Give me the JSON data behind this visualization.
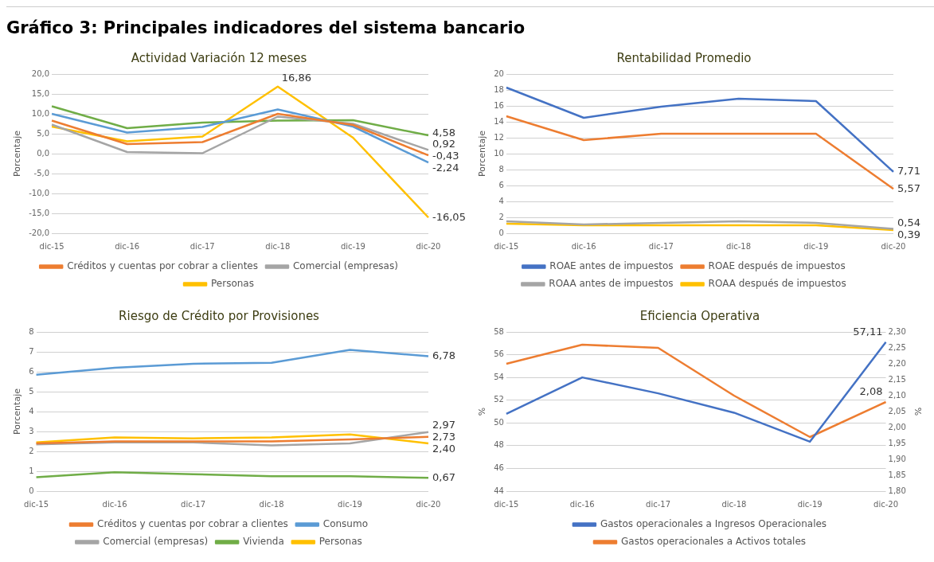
{
  "chart_data": [
    {
      "type": "line",
      "title": "Actividad Variación 12 meses",
      "ylabel": "Porcentaje",
      "annotations": [
        "Gráfico 3: Principales indicadores del sistema bancario"
      ],
      "categories": [
        "dic-15",
        "dic-16",
        "dic-17",
        "dic-18",
        "dic-19",
        "dic-20"
      ],
      "ylim": [
        -20,
        20
      ],
      "yticks": [
        {
          "value": -20,
          "label": "-20,0"
        },
        {
          "value": -15,
          "label": "-15,0"
        },
        {
          "value": -10,
          "label": "-10,0"
        },
        {
          "value": -5,
          "label": "-5,0"
        },
        {
          "value": 0,
          "label": "0,0"
        },
        {
          "value": 5,
          "label": "5,0"
        },
        {
          "value": 10,
          "label": "10,0"
        },
        {
          "value": 15,
          "label": "15,0"
        },
        {
          "value": 20,
          "label": "20,0"
        }
      ],
      "grid": "y",
      "legend": "bottom",
      "marker": "none",
      "line_style": "solid",
      "series": [
        {
          "name": "Créditos y cuentas por cobrar a clientes",
          "color": "#ed7d31",
          "values": [
            8.3,
            2.4,
            2.9,
            10.0,
            7.2,
            -0.43
          ],
          "value_labels": [
            null,
            null,
            null,
            null,
            null,
            "-0,43"
          ]
        },
        {
          "name": "Comercial (empresas)",
          "color": "#a5a5a5",
          "values": [
            7.3,
            0.4,
            0.1,
            9.3,
            7.5,
            0.92
          ],
          "value_labels": [
            null,
            null,
            null,
            null,
            null,
            "0,92"
          ]
        },
        {
          "color": "#5b9bd5",
          "values": [
            10.0,
            5.3,
            6.7,
            11.1,
            6.8,
            -2.24
          ],
          "value_labels": [
            null,
            null,
            null,
            null,
            null,
            "-2,24"
          ]
        },
        {
          "color": "#70ad47",
          "values": [
            11.9,
            6.4,
            7.8,
            8.3,
            8.4,
            4.58
          ],
          "value_labels": [
            null,
            null,
            null,
            null,
            null,
            "4,58"
          ]
        },
        {
          "name": "Personas",
          "color": "#ffc000",
          "values": [
            6.8,
            3.1,
            4.3,
            16.86,
            4.0,
            -16.05
          ],
          "value_labels": [
            null,
            null,
            null,
            "16,86",
            null,
            "-16,05"
          ]
        }
      ]
    },
    {
      "type": "line",
      "title": "Rentabilidad Promedio",
      "ylabel": "Porcentaje",
      "categories": [
        "dic-15",
        "dic-16",
        "dic-17",
        "dic-18",
        "dic-19",
        "dic-20"
      ],
      "ylim": [
        0,
        20
      ],
      "yticks": [
        0,
        2,
        4,
        6,
        8,
        10,
        12,
        14,
        16,
        18,
        20
      ],
      "grid": "y",
      "legend": "bottom",
      "marker": "none",
      "line_style": "solid",
      "series": [
        {
          "name": "ROAE antes de impuestos",
          "color": "#4472c4",
          "values": [
            18.3,
            14.5,
            15.9,
            16.9,
            16.6,
            7.71
          ],
          "value_labels": [
            null,
            null,
            null,
            null,
            null,
            "7,71"
          ]
        },
        {
          "name": "ROAE después de impuestos",
          "color": "#ed7d31",
          "values": [
            14.7,
            11.7,
            12.5,
            12.5,
            12.5,
            5.57
          ],
          "value_labels": [
            null,
            null,
            null,
            null,
            null,
            "5,57"
          ]
        },
        {
          "name": "ROAA antes de impuestos",
          "color": "#a5a5a5",
          "values": [
            1.5,
            1.1,
            1.3,
            1.5,
            1.3,
            0.54
          ],
          "value_labels": [
            null,
            null,
            null,
            null,
            null,
            "0,54"
          ]
        },
        {
          "name": "ROAA después de impuestos",
          "color": "#ffc000",
          "values": [
            1.2,
            1.0,
            1.0,
            1.0,
            1.0,
            0.39
          ],
          "value_labels": [
            null,
            null,
            null,
            null,
            null,
            "0,39"
          ]
        }
      ]
    },
    {
      "type": "line",
      "title": "Riesgo de Crédito por Provisiones",
      "ylabel": "Porcentaje",
      "categories": [
        "dic-15",
        "dic-16",
        "dic-17",
        "dic-18",
        "dic-19",
        "dic-20"
      ],
      "ylim": [
        0,
        8
      ],
      "yticks": [
        0,
        1,
        2,
        3,
        4,
        5,
        6,
        7,
        8
      ],
      "grid": "y",
      "legend": "bottom",
      "marker": "none",
      "line_style": "solid",
      "series": [
        {
          "name": "Créditos y cuentas por cobrar a clientes",
          "color": "#ed7d31",
          "values": [
            2.4,
            2.5,
            2.5,
            2.5,
            2.6,
            2.73
          ],
          "value_labels": [
            null,
            null,
            null,
            null,
            null,
            "2,73"
          ]
        },
        {
          "name": "Consumo",
          "color": "#5b9bd5",
          "values": [
            5.85,
            6.2,
            6.4,
            6.45,
            7.1,
            6.78
          ],
          "value_labels": [
            null,
            null,
            null,
            null,
            null,
            "6,78"
          ]
        },
        {
          "name": "Comercial (empresas)",
          "color": "#a5a5a5",
          "values": [
            2.35,
            2.45,
            2.45,
            2.3,
            2.4,
            2.97
          ],
          "value_labels": [
            null,
            null,
            null,
            null,
            null,
            "2,97"
          ]
        },
        {
          "name": "Vivienda",
          "color": "#70ad47",
          "values": [
            0.7,
            0.95,
            0.85,
            0.75,
            0.75,
            0.67
          ],
          "value_labels": [
            null,
            null,
            null,
            null,
            null,
            "0,67"
          ]
        },
        {
          "name": "Personas",
          "color": "#ffc000",
          "values": [
            2.45,
            2.7,
            2.65,
            2.7,
            2.85,
            2.4
          ],
          "value_labels": [
            null,
            null,
            null,
            null,
            null,
            "2,40"
          ]
        }
      ]
    },
    {
      "type": "line",
      "title": "Eficiencia Operativa",
      "ylabel": "%",
      "y2label": "%",
      "categories": [
        "dic-15",
        "dic-16",
        "dic-17",
        "dic-18",
        "dic-19",
        "dic-20"
      ],
      "ylim": [
        44,
        58
      ],
      "yticks": [
        44,
        46,
        48,
        50,
        52,
        54,
        56,
        58
      ],
      "y2lim": [
        1.8,
        2.3
      ],
      "y2ticks": [
        {
          "value": 1.8,
          "label": "1,80"
        },
        {
          "value": 1.85,
          "label": "1,85"
        },
        {
          "value": 1.9,
          "label": "1,90"
        },
        {
          "value": 1.95,
          "label": "1,95"
        },
        {
          "value": 2.0,
          "label": "2,00"
        },
        {
          "value": 2.05,
          "label": "2,05"
        },
        {
          "value": 2.1,
          "label": "2,10"
        },
        {
          "value": 2.15,
          "label": "2,15"
        },
        {
          "value": 2.2,
          "label": "2,20"
        },
        {
          "value": 2.25,
          "label": "2,25"
        },
        {
          "value": 2.3,
          "label": "2,30"
        }
      ],
      "grid": "y",
      "legend": "bottom",
      "marker": "none",
      "line_style": "solid",
      "series": [
        {
          "name": "Gastos operacionales a Ingresos Operacionales",
          "color": "#4472c4",
          "values": [
            50.8,
            54.0,
            52.6,
            50.9,
            48.35,
            57.11
          ],
          "value_labels": [
            null,
            null,
            null,
            null,
            null,
            "57,11"
          ]
        },
        {
          "name": "Gastos operacionales a Activos totales",
          "color": "#ed7d31",
          "axis": "y2",
          "values": [
            2.2,
            2.26,
            2.25,
            2.1,
            1.97,
            2.08
          ],
          "value_labels": [
            null,
            null,
            null,
            null,
            null,
            "2,08"
          ]
        }
      ]
    }
  ]
}
